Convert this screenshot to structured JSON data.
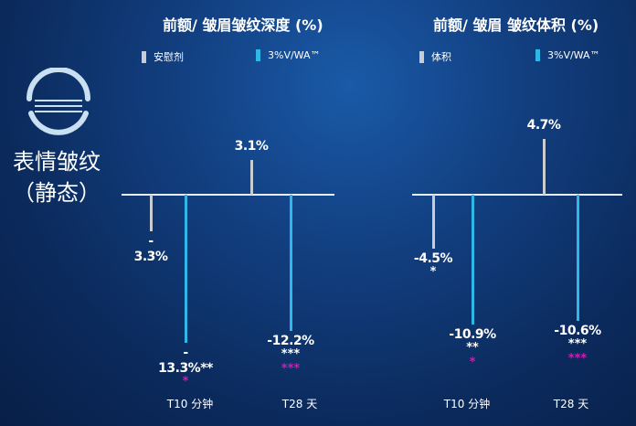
{
  "side_label": {
    "line1": "表情皱纹",
    "line2": "（静态）",
    "icon": "face-lines-icon"
  },
  "colors": {
    "placebo": "#c8cdd4",
    "treatment": "#2fb7ea",
    "axis": "#e6eef8",
    "text": "#ffffff",
    "sig_magenta": "#d21bb4"
  },
  "chart_data": [
    {
      "type": "bar",
      "title": "前额/ 皱眉皱纹深度 (%)",
      "categories": [
        "T10 分钟",
        "T28 天"
      ],
      "series": [
        {
          "name": "安慰剂",
          "values": [
            -3.3,
            3.1
          ]
        },
        {
          "name": "3%V/WA™",
          "values": [
            -13.3,
            -12.2
          ]
        }
      ],
      "labels": {
        "安慰剂": [
          {
            "text": "-\n3.3%",
            "sig": "",
            "sig2": ""
          },
          {
            "text": "3.1%",
            "sig": "",
            "sig2": ""
          }
        ],
        "3%V/WA™": [
          {
            "text": "-\n13.3%**",
            "sig": "",
            "sig2": "*"
          },
          {
            "text": "-12.2%",
            "sig": "***",
            "sig2": "***"
          }
        ]
      }
    },
    {
      "type": "bar",
      "title": "前额/ 皱眉  皱纹体积 (%)",
      "categories": [
        "T10 分钟",
        "T28 天"
      ],
      "series": [
        {
          "name": "体积",
          "values": [
            -4.5,
            4.7
          ]
        },
        {
          "name": "3%V/WA™",
          "values": [
            -10.9,
            -10.6
          ]
        }
      ],
      "labels": {
        "体积": [
          {
            "text": "-4.5%",
            "sig": "*",
            "sig2": ""
          },
          {
            "text": "4.7%",
            "sig": "",
            "sig2": ""
          }
        ],
        "3%V/WA™": [
          {
            "text": "-10.9%",
            "sig": "**",
            "sig2": "*"
          },
          {
            "text": "-10.6%",
            "sig": "***",
            "sig2": "***"
          }
        ]
      }
    }
  ]
}
